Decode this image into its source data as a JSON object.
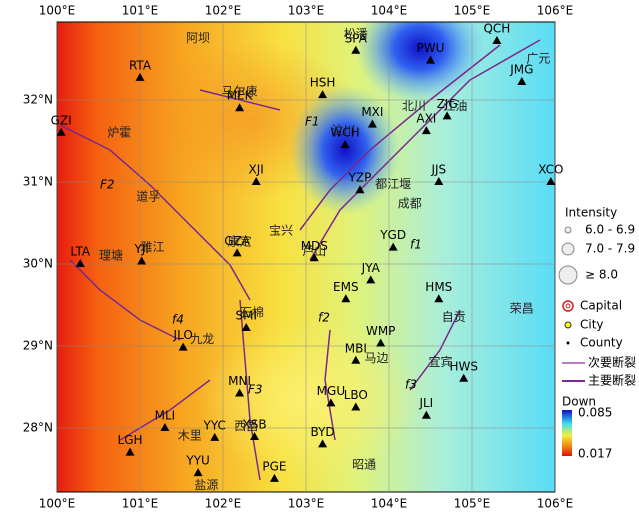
{
  "map": {
    "lon_ticks": [
      {
        "value": 100,
        "label": "100°E"
      },
      {
        "value": 101,
        "label": "101°E"
      },
      {
        "value": 102,
        "label": "102°E"
      },
      {
        "value": 103,
        "label": "103°E"
      },
      {
        "value": 104,
        "label": "104°E"
      },
      {
        "value": 105,
        "label": "105°E"
      },
      {
        "value": 106,
        "label": "106°E"
      }
    ],
    "lat_ticks": [
      {
        "value": 32,
        "label": "32°N"
      },
      {
        "value": 31,
        "label": "31°N"
      },
      {
        "value": 30,
        "label": "30°N"
      },
      {
        "value": 29,
        "label": "29°N"
      },
      {
        "value": 28,
        "label": "28°N"
      }
    ],
    "stations": [
      {
        "label": "RTA",
        "lon": 101.0,
        "lat": 32.27
      },
      {
        "label": "HSH",
        "lon": 103.2,
        "lat": 32.06
      },
      {
        "label": "MEK",
        "lon": 102.2,
        "lat": 31.9
      },
      {
        "label": "MXI",
        "lon": 103.8,
        "lat": 31.7
      },
      {
        "label": "ZJG",
        "lon": 104.7,
        "lat": 31.8
      },
      {
        "label": "AXI",
        "lon": 104.45,
        "lat": 31.62
      },
      {
        "label": "GZI",
        "lon": 100.05,
        "lat": 31.6
      },
      {
        "label": "XJI",
        "lon": 102.4,
        "lat": 31.0
      },
      {
        "label": "JJS",
        "lon": 104.6,
        "lat": 31.0
      },
      {
        "label": "XCO",
        "lon": 105.95,
        "lat": 31.0
      },
      {
        "label": "WCH",
        "lon": 103.47,
        "lat": 31.45
      },
      {
        "label": "YZP",
        "lon": 103.65,
        "lat": 30.9
      },
      {
        "label": "YGD",
        "lon": 104.05,
        "lat": 30.2
      },
      {
        "label": "YJI",
        "lon": 101.02,
        "lat": 30.03
      },
      {
        "label": "LTA",
        "lon": 100.28,
        "lat": 30.0
      },
      {
        "label": "GZA",
        "lon": 102.17,
        "lat": 30.13
      },
      {
        "label": "MDS",
        "lon": 103.1,
        "lat": 30.07
      },
      {
        "label": "JYA",
        "lon": 103.78,
        "lat": 29.8
      },
      {
        "label": "EMS",
        "lon": 103.48,
        "lat": 29.57
      },
      {
        "label": "HMS",
        "lon": 104.6,
        "lat": 29.57
      },
      {
        "label": "SMI",
        "lon": 102.28,
        "lat": 29.22
      },
      {
        "label": "JLO",
        "lon": 101.52,
        "lat": 28.98
      },
      {
        "label": "WMP",
        "lon": 103.9,
        "lat": 29.03
      },
      {
        "label": "MBI",
        "lon": 103.6,
        "lat": 28.82
      },
      {
        "label": "HWS",
        "lon": 104.9,
        "lat": 28.6
      },
      {
        "label": "MGU",
        "lon": 103.3,
        "lat": 28.3
      },
      {
        "label": "LBO",
        "lon": 103.6,
        "lat": 28.25
      },
      {
        "label": "JLI",
        "lon": 104.45,
        "lat": 28.15
      },
      {
        "label": "MNI",
        "lon": 102.2,
        "lat": 28.42
      },
      {
        "label": "MLI",
        "lon": 101.3,
        "lat": 28.0
      },
      {
        "label": "LGH",
        "lon": 100.88,
        "lat": 27.7
      },
      {
        "label": "XSB",
        "lon": 102.38,
        "lat": 27.89
      },
      {
        "label": "BYD",
        "lon": 103.2,
        "lat": 27.8
      },
      {
        "label": "YYU",
        "lon": 101.7,
        "lat": 27.45
      },
      {
        "label": "PGE",
        "lon": 102.62,
        "lat": 27.38
      },
      {
        "label": "QCH",
        "lon": 105.3,
        "lat": 32.72
      },
      {
        "label": "PWU",
        "lon": 104.5,
        "lat": 32.48
      },
      {
        "label": "SPA",
        "lon": 103.6,
        "lat": 32.6
      },
      {
        "label": "JMG",
        "lon": 105.6,
        "lat": 32.22
      },
      {
        "label": "YYC",
        "lon": 101.9,
        "lat": 27.88
      }
    ],
    "places": [
      {
        "label": "阿坝",
        "lon": 101.7,
        "lat": 32.75
      },
      {
        "label": "松潘",
        "lon": 103.6,
        "lat": 32.8
      },
      {
        "label": "广元",
        "lon": 105.8,
        "lat": 32.5
      },
      {
        "label": "马尔康",
        "lon": 102.2,
        "lat": 32.1
      },
      {
        "label": "北川",
        "lon": 104.3,
        "lat": 31.92
      },
      {
        "label": "江油",
        "lon": 104.8,
        "lat": 31.92
      },
      {
        "label": "炉霍",
        "lon": 100.75,
        "lat": 31.6
      },
      {
        "label": "汶川",
        "lon": 103.45,
        "lat": 31.62
      },
      {
        "label": "都江堰",
        "lon": 104.05,
        "lat": 30.97
      },
      {
        "label": "成都",
        "lon": 104.25,
        "lat": 30.73
      },
      {
        "label": "道孚",
        "lon": 101.1,
        "lat": 30.82
      },
      {
        "label": "宝兴",
        "lon": 102.7,
        "lat": 30.4
      },
      {
        "label": "芦山",
        "lon": 103.1,
        "lat": 30.15
      },
      {
        "label": "理塘",
        "lon": 100.65,
        "lat": 30.1
      },
      {
        "label": "雅江",
        "lon": 101.15,
        "lat": 30.2
      },
      {
        "label": "康定",
        "lon": 102.2,
        "lat": 30.27
      },
      {
        "label": "石棉",
        "lon": 102.35,
        "lat": 29.4
      },
      {
        "label": "九龙",
        "lon": 101.75,
        "lat": 29.08
      },
      {
        "label": "自贡",
        "lon": 104.78,
        "lat": 29.35
      },
      {
        "label": "荣昌",
        "lon": 105.6,
        "lat": 29.45
      },
      {
        "label": "宜宾",
        "lon": 104.62,
        "lat": 28.8
      },
      {
        "label": "马边",
        "lon": 103.85,
        "lat": 28.85
      },
      {
        "label": "西昌",
        "lon": 102.28,
        "lat": 28.02
      },
      {
        "label": "木里",
        "lon": 101.6,
        "lat": 27.9
      },
      {
        "label": "盐源",
        "lon": 101.8,
        "lat": 27.3
      },
      {
        "label": "昭通",
        "lon": 103.7,
        "lat": 27.55
      }
    ],
    "faults": [
      "F1",
      "F2",
      "F3",
      "f1",
      "f2",
      "f3",
      "f4"
    ],
    "legend": {
      "title": "Intensity",
      "items": [
        "6.0 - 6.9",
        "7.0 - 7.9",
        "≥ 8.0"
      ],
      "cities": [
        "Capital",
        "City",
        "County"
      ],
      "faults": [
        "次要断裂",
        "主要断裂"
      ],
      "colorbar": {
        "title": "Down",
        "max": "0.085",
        "min": "0.017"
      }
    }
  }
}
